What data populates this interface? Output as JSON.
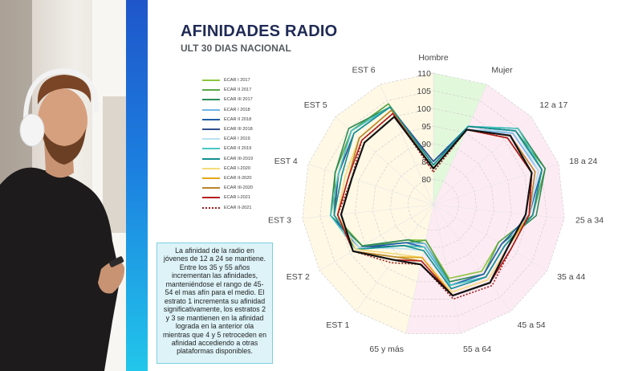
{
  "header": {
    "title": "AFINIDADES RADIO",
    "subtitle": "ULT 30 DIAS NACIONAL"
  },
  "note": {
    "text": "La afinidad de la radio en jóvenes de 12 a 24 se mantiene. Entre los 35 y 55 años incrementan las afinidades, manteniéndose el rango de 45-54 el mas afín para el medio. El estrato 1 incrementa su afinidad significativamente, los estratos 2 y 3 se mantienen en la afinidad lograda en la anterior ola mientras que 4 y 5 retroceden en afinidad accediendo a otras plataformas disponibles."
  },
  "photo": {
    "description_icon": "man-with-headphones-photo"
  },
  "colors": {
    "accent_bar": "#1f6ad6",
    "title": "#1f2a55",
    "note_bg": "#ddf3f8"
  },
  "chart_data": {
    "type": "radar",
    "categories": [
      "Hombre",
      "Mujer",
      "12 a 17",
      "18 a 24",
      "25 a 34",
      "35 a 44",
      "45 a 54",
      "55 a 64",
      "65 y más",
      "EST 1",
      "EST 2",
      "EST 3",
      "EST 4",
      "EST 5",
      "EST 6"
    ],
    "rlim": [
      75,
      110
    ],
    "ticks": [
      "80",
      "85",
      "90",
      "95",
      "100",
      "105",
      "110"
    ],
    "grid": true,
    "legend_position": "left",
    "series": [
      {
        "name": "ECAR I 2017",
        "color": "#8dc63f",
        "dash": "",
        "values": [
          84,
          96,
          104,
          105,
          101,
          94,
          96,
          94,
          83,
          85,
          96,
          101,
          101,
          104,
          104
        ]
      },
      {
        "name": "ECAR II 2017",
        "color": "#5aa64a",
        "dash": "",
        "values": [
          84,
          97,
          104,
          106,
          101,
          94,
          97,
          95,
          83,
          86,
          96,
          101,
          102,
          104,
          104
        ]
      },
      {
        "name": "ECAR III 2017",
        "color": "#2e8b57",
        "dash": "",
        "values": [
          83,
          97,
          105,
          106,
          102,
          95,
          97,
          95,
          84,
          85,
          96,
          102,
          102,
          105,
          103
        ]
      },
      {
        "name": "ECAR I 2018",
        "color": "#6fb7e8",
        "dash": "",
        "values": [
          84,
          96,
          103,
          104,
          100,
          95,
          97,
          96,
          84,
          86,
          97,
          101,
          101,
          103,
          103
        ]
      },
      {
        "name": "ECAR II 2018",
        "color": "#1f5fa8",
        "dash": "",
        "values": [
          85,
          97,
          104,
          105,
          100,
          95,
          97,
          96,
          85,
          86,
          97,
          102,
          101,
          104,
          103
        ]
      },
      {
        "name": "ECAR III 2018",
        "color": "#2f4f8f",
        "dash": "",
        "values": [
          85,
          96,
          104,
          105,
          101,
          96,
          98,
          96,
          85,
          87,
          97,
          101,
          101,
          103,
          103
        ]
      },
      {
        "name": "ECAR I 2019",
        "color": "#b8e2f2",
        "dash": "",
        "values": [
          84,
          96,
          104,
          104,
          100,
          96,
          98,
          97,
          86,
          88,
          97,
          101,
          100,
          103,
          103
        ]
      },
      {
        "name": "ECAR II 2019",
        "color": "#48c7c5",
        "dash": "",
        "values": [
          84,
          97,
          105,
          105,
          101,
          96,
          98,
          96,
          85,
          87,
          98,
          102,
          101,
          104,
          103
        ]
      },
      {
        "name": "ECAR III-2019",
        "color": "#138f8f",
        "dash": "",
        "values": [
          84,
          97,
          104,
          105,
          101,
          96,
          98,
          97,
          86,
          87,
          98,
          101,
          100,
          103,
          103
        ]
      },
      {
        "name": "ECAR I-2020",
        "color": "#f5d97a",
        "dash": "",
        "values": [
          83,
          96,
          101,
          102,
          100,
          97,
          99,
          98,
          88,
          90,
          98,
          100,
          99,
          101,
          102
        ]
      },
      {
        "name": "ECAR II-2020",
        "color": "#e3a614",
        "dash": "",
        "values": [
          83,
          96,
          101,
          102,
          100,
          97,
          100,
          99,
          88,
          91,
          99,
          100,
          98,
          101,
          102
        ]
      },
      {
        "name": "ECAR III-2020",
        "color": "#b8862b",
        "dash": "",
        "values": [
          83,
          96,
          102,
          103,
          100,
          98,
          100,
          99,
          89,
          91,
          99,
          100,
          98,
          101,
          102
        ]
      },
      {
        "name": "ECAR I-2021",
        "color": "#b81c22",
        "dash": "",
        "values": [
          83,
          96,
          101,
          102,
          100,
          98,
          100,
          99,
          89,
          92,
          99,
          100,
          98,
          100,
          101
        ]
      },
      {
        "name": "ECAR II-2021",
        "color": "#9e1a1a",
        "dash": "2,2",
        "values": [
          82,
          96,
          101,
          102,
          100,
          98,
          101,
          100,
          90,
          93,
          99,
          100,
          97,
          100,
          101
        ]
      },
      {
        "name": "",
        "color": "#111111",
        "dash": "",
        "values": [
          83,
          96,
          102,
          102,
          99,
          97,
          100,
          99,
          90,
          92,
          99,
          99,
          97,
          99,
          100
        ]
      }
    ]
  }
}
